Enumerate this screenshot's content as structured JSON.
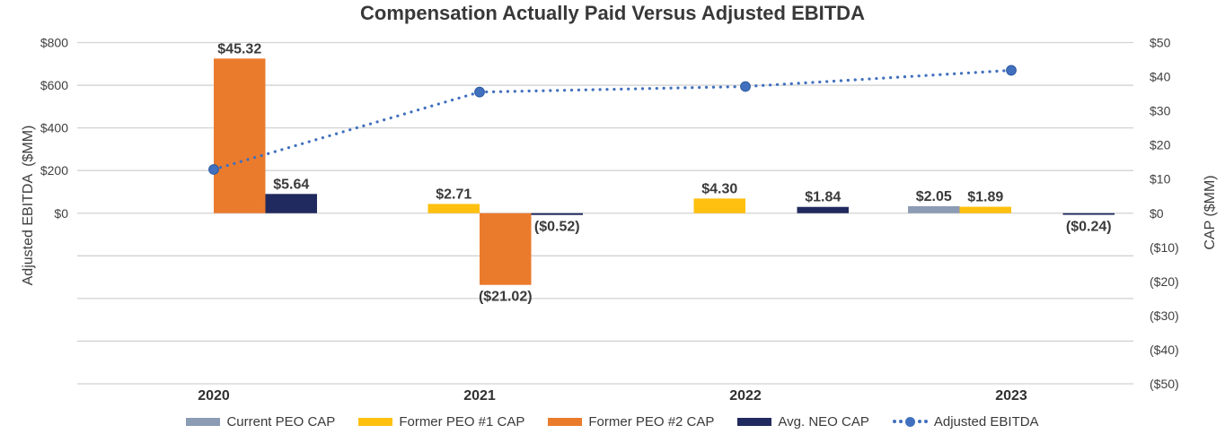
{
  "chart_data": {
    "type": "bar+line dual-axis combo",
    "title": "Compensation Actually Paid Versus Adjusted EBITDA",
    "categories": [
      "2020",
      "2021",
      "2022",
      "2023"
    ],
    "bar_series": [
      {
        "name": "Current PEO CAP",
        "color": "#8C9CB4",
        "axis": "right",
        "values": [
          null,
          null,
          null,
          2.05
        ],
        "labels": [
          null,
          null,
          null,
          "$2.05"
        ]
      },
      {
        "name": "Former PEO #1 CAP",
        "color": "#FFC010",
        "axis": "right",
        "values": [
          null,
          2.71,
          4.3,
          1.89
        ],
        "labels": [
          null,
          "$2.71",
          "$4.30",
          "$1.89"
        ]
      },
      {
        "name": "Former PEO #2 CAP",
        "color": "#EA7B2D",
        "axis": "right",
        "values": [
          45.32,
          -21.02,
          null,
          null
        ],
        "labels": [
          "$45.32",
          "($21.02)",
          null,
          null
        ]
      },
      {
        "name": "Avg. NEO CAP",
        "color": "#212A5E",
        "axis": "right",
        "values": [
          5.64,
          -0.52,
          1.84,
          -0.24
        ],
        "labels": [
          "$5.64",
          "($0.52)",
          "$1.84",
          "($0.24)"
        ]
      }
    ],
    "line_series": {
      "name": "Adjusted EBITDA",
      "color": "#4170BE",
      "marker_edge_color": "#2D5AA0",
      "style": "dotted-with-round-markers",
      "axis": "left",
      "values": [
        205,
        568,
        594,
        670
      ]
    },
    "left_axis": {
      "label": "Adjusted EBITDA  ($MM)",
      "min": -800,
      "max": 800,
      "gridline_step": 200,
      "ticks": [
        {
          "label": "$800",
          "value": 800
        },
        {
          "label": "$600",
          "value": 600
        },
        {
          "label": "$400",
          "value": 400
        },
        {
          "label": "$200",
          "value": 200
        },
        {
          "label": "$0",
          "value": 0
        }
      ]
    },
    "right_axis": {
      "label": "CAP ($MM)",
      "min": -50,
      "max": 50,
      "tick_step": 10,
      "ticks": [
        {
          "label": "$50",
          "value": 50
        },
        {
          "label": "$40",
          "value": 40
        },
        {
          "label": "$30",
          "value": 30
        },
        {
          "label": "$20",
          "value": 20
        },
        {
          "label": "$10",
          "value": 10
        },
        {
          "label": "$0",
          "value": 0
        },
        {
          "label": "($10)",
          "value": -10
        },
        {
          "label": "($20)",
          "value": -20
        },
        {
          "label": "($30)",
          "value": -30
        },
        {
          "label": "($40)",
          "value": -40
        },
        {
          "label": "($50)",
          "value": -50
        }
      ]
    },
    "legend": [
      "Current PEO CAP",
      "Former PEO #1 CAP",
      "Former PEO #2 CAP",
      "Avg. NEO CAP",
      "Adjusted EBITDA"
    ],
    "colors": {
      "negative_label": "#F40505",
      "gridline": "#D2D2D2",
      "axis_text": "#3F3F3F",
      "title_text": "#383838"
    },
    "layout_hints": {
      "grid": "horizontal gridlines only, at left-axis $200 steps",
      "legend_position": "bottom center",
      "line_spans": "from first category marker to last category marker only"
    }
  }
}
